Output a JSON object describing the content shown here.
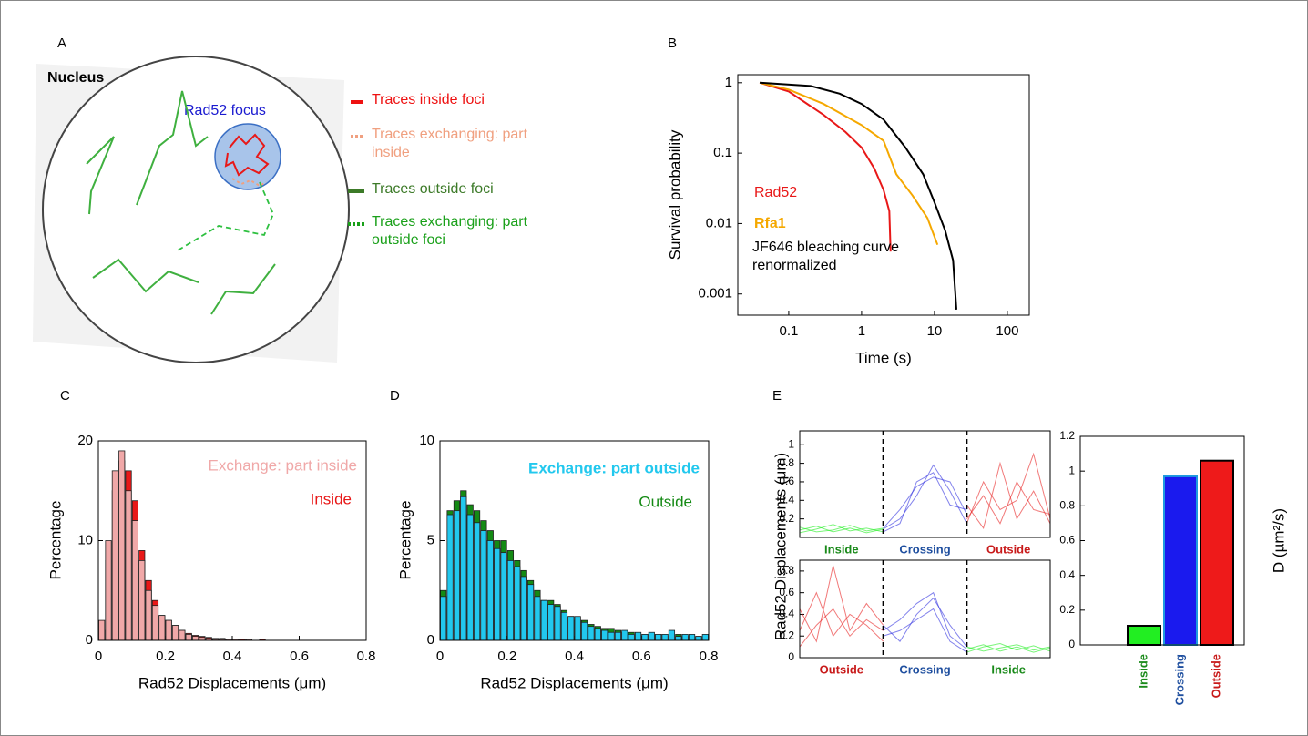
{
  "diagram": {
    "panel": "A",
    "nucleus_label": "Nucleus",
    "focus_label": "Rad52 focus",
    "legend": [
      {
        "label": "Traces inside foci",
        "color": "#ee1111"
      },
      {
        "label": "Traces exchanging: part inside",
        "color": "#f0a080"
      },
      {
        "label": "Traces outside foci",
        "color": "#3c7a28"
      },
      {
        "label": "Traces exchanging: part outside foci",
        "color": "#1aa01a"
      }
    ]
  },
  "chart_data": [
    {
      "type": "line",
      "panel": "B",
      "xlabel": "Time (s)",
      "ylabel": "Survival probability",
      "xscale": "log",
      "yscale": "log",
      "xlim": [
        0.02,
        200
      ],
      "ylim": [
        0.0005,
        1.3
      ],
      "xticks": [
        0.1,
        1,
        10,
        100
      ],
      "yticks": [
        1,
        0.1,
        0.01,
        0.001
      ],
      "series": [
        {
          "name": "Rad52",
          "color": "#e81818",
          "x": [
            0.04,
            0.1,
            0.3,
            0.6,
            1,
            1.5,
            2,
            2.4,
            2.5
          ],
          "values": [
            1,
            0.75,
            0.35,
            0.2,
            0.12,
            0.06,
            0.03,
            0.015,
            0.004
          ]
        },
        {
          "name": "Rfa1",
          "color": "#f5a800",
          "x": [
            0.04,
            0.1,
            0.3,
            1,
            2,
            3,
            5,
            8,
            11
          ],
          "values": [
            1,
            0.8,
            0.5,
            0.25,
            0.15,
            0.05,
            0.025,
            0.012,
            0.005
          ]
        },
        {
          "name": "JF646 bleaching curve renormalized",
          "color": "#000000",
          "x": [
            0.04,
            0.2,
            0.5,
            1,
            2,
            4,
            7,
            10,
            14,
            18,
            20
          ],
          "values": [
            1,
            0.9,
            0.7,
            0.5,
            0.3,
            0.12,
            0.05,
            0.02,
            0.008,
            0.003,
            0.0006
          ]
        }
      ]
    },
    {
      "type": "histogram",
      "panel": "C",
      "xlabel": "Rad52 Displacements (μm)",
      "ylabel": "Percentage",
      "xlim": [
        0,
        0.8
      ],
      "ylim": [
        0,
        20
      ],
      "xticks": [
        0,
        0.2,
        0.4,
        0.6,
        0.8
      ],
      "yticks": [
        0,
        10,
        20
      ],
      "bins": [
        0,
        0.02,
        0.04,
        0.06,
        0.08,
        0.1,
        0.12,
        0.14,
        0.16,
        0.18,
        0.2,
        0.22,
        0.24,
        0.26,
        0.28,
        0.3,
        0.32,
        0.34,
        0.36,
        0.38,
        0.4,
        0.42,
        0.44,
        0.46,
        0.48,
        0.5,
        0.52,
        0.54,
        0.56,
        0.58,
        0.6,
        0.62,
        0.64,
        0.66,
        0.68,
        0.7,
        0.72,
        0.74,
        0.76,
        0.78,
        0.8
      ],
      "series": [
        {
          "name": "Inside",
          "color": "#e81818",
          "values": [
            1,
            8,
            15,
            18,
            17,
            14,
            9,
            6,
            4,
            2.5,
            2,
            1.5,
            1,
            0.7,
            0.5,
            0.4,
            0.3,
            0.2,
            0.2,
            0.1,
            0.1,
            0.1,
            0.1,
            0,
            0.1,
            0,
            0,
            0,
            0,
            0,
            0,
            0,
            0,
            0,
            0,
            0,
            0,
            0,
            0,
            0
          ]
        },
        {
          "name": "Exchange: part inside",
          "color": "#f0a8a8",
          "values": [
            2,
            10,
            17,
            19,
            15,
            12,
            8,
            5,
            3.5,
            2.5,
            2,
            1.5,
            1,
            0.6,
            0.4,
            0.3,
            0.2,
            0.1,
            0.1,
            0.1,
            0.1,
            0,
            0.1,
            0,
            0,
            0,
            0,
            0,
            0,
            0,
            0,
            0,
            0,
            0,
            0,
            0,
            0,
            0,
            0,
            0
          ]
        }
      ]
    },
    {
      "type": "histogram",
      "panel": "D",
      "xlabel": "Rad52 Displacements (μm)",
      "ylabel": "Percentage",
      "xlim": [
        0,
        0.8
      ],
      "ylim": [
        0,
        10
      ],
      "xticks": [
        0,
        0.2,
        0.4,
        0.6,
        0.8
      ],
      "yticks": [
        0,
        5,
        10
      ],
      "bins": [
        0,
        0.02,
        0.04,
        0.06,
        0.08,
        0.1,
        0.12,
        0.14,
        0.16,
        0.18,
        0.2,
        0.22,
        0.24,
        0.26,
        0.28,
        0.3,
        0.32,
        0.34,
        0.36,
        0.38,
        0.4,
        0.42,
        0.44,
        0.46,
        0.48,
        0.5,
        0.52,
        0.54,
        0.56,
        0.58,
        0.6,
        0.62,
        0.64,
        0.66,
        0.68,
        0.7,
        0.72,
        0.74,
        0.76,
        0.78,
        0.8
      ],
      "series": [
        {
          "name": "Outside",
          "color": "#148a14",
          "values": [
            2.5,
            6.5,
            7,
            7.5,
            6.8,
            6.5,
            6,
            5.5,
            5,
            5,
            4.5,
            4,
            3.5,
            3,
            2.5,
            2,
            2,
            1.8,
            1.5,
            1.2,
            1,
            1,
            0.8,
            0.7,
            0.6,
            0.6,
            0.5,
            0.4,
            0.4,
            0.3,
            0.3,
            0.3,
            0.3,
            0.2,
            0.3,
            0.3,
            0.2,
            0.2,
            0.2,
            0.2
          ]
        },
        {
          "name": "Exchange: part outside",
          "color": "#22c8ee",
          "values": [
            2.2,
            6.3,
            6.5,
            7.2,
            6.3,
            5.9,
            5.5,
            5,
            4.6,
            4.4,
            4,
            3.7,
            3.2,
            2.8,
            2.2,
            2,
            1.8,
            1.7,
            1.4,
            1.2,
            1.2,
            0.9,
            0.7,
            0.6,
            0.5,
            0.4,
            0.4,
            0.5,
            0.3,
            0.4,
            0.3,
            0.4,
            0.3,
            0.3,
            0.5,
            0.2,
            0.3,
            0.3,
            0.2,
            0.3
          ]
        }
      ]
    },
    {
      "type": "traces",
      "panel": "E",
      "ylabel": "Rad52 Displacements (μm)",
      "xlim": [
        0,
        30
      ],
      "ylim": [
        0,
        1.15
      ],
      "yticks": [
        0.2,
        0.4,
        0.6,
        0.8,
        1
      ],
      "dividers": [
        10,
        20
      ],
      "groups": [
        {
          "label": "Inside",
          "color": "#1a8a1a"
        },
        {
          "label": "Crossing",
          "color": "#1f4f9f"
        },
        {
          "label": "Outside",
          "color": "#c81a1a"
        }
      ],
      "series": [
        {
          "color": "#22ee22",
          "x": [
            0,
            2,
            4,
            6,
            8,
            10
          ],
          "values": [
            0.08,
            0.12,
            0.06,
            0.1,
            0.05,
            0.09
          ]
        },
        {
          "color": "#22ee22",
          "x": [
            0,
            2,
            4,
            6,
            8,
            10
          ],
          "values": [
            0.05,
            0.09,
            0.14,
            0.07,
            0.1,
            0.06
          ]
        },
        {
          "color": "#22ee22",
          "x": [
            0,
            2,
            4,
            6,
            8,
            10
          ],
          "values": [
            0.11,
            0.06,
            0.08,
            0.13,
            0.07,
            0.1
          ]
        },
        {
          "color": "#3030e0",
          "x": [
            10,
            12,
            14,
            16,
            18,
            20
          ],
          "values": [
            0.09,
            0.2,
            0.45,
            0.78,
            0.5,
            0.15
          ]
        },
        {
          "color": "#3030e0",
          "x": [
            10,
            12,
            14,
            16,
            18,
            20
          ],
          "values": [
            0.06,
            0.15,
            0.6,
            0.7,
            0.35,
            0.3
          ]
        },
        {
          "color": "#3030e0",
          "x": [
            10,
            12,
            14,
            16,
            18,
            20
          ],
          "values": [
            0.1,
            0.3,
            0.55,
            0.65,
            0.6,
            0.25
          ]
        },
        {
          "color": "#e82020",
          "x": [
            20,
            22,
            24,
            26,
            28,
            30
          ],
          "values": [
            0.2,
            0.45,
            0.15,
            0.6,
            0.3,
            0.25
          ]
        },
        {
          "color": "#e82020",
          "x": [
            20,
            22,
            24,
            26,
            28,
            30
          ],
          "values": [
            0.35,
            0.1,
            0.8,
            0.2,
            0.5,
            0.15
          ]
        },
        {
          "color": "#e82020",
          "x": [
            20,
            22,
            24,
            26,
            28,
            30
          ],
          "values": [
            0.15,
            0.6,
            0.3,
            0.4,
            0.9,
            0.2
          ]
        }
      ]
    },
    {
      "type": "traces",
      "xlim": [
        0,
        30
      ],
      "ylim": [
        0,
        0.9
      ],
      "yticks": [
        0,
        0.2,
        0.4,
        0.6,
        0.8
      ],
      "dividers": [
        10,
        20
      ],
      "groups": [
        {
          "label": "Outside",
          "color": "#c81a1a"
        },
        {
          "label": "Crossing",
          "color": "#1f4f9f"
        },
        {
          "label": "Inside",
          "color": "#1a8a1a"
        }
      ],
      "series": [
        {
          "color": "#e82020",
          "x": [
            0,
            2,
            4,
            6,
            8,
            10
          ],
          "values": [
            0.25,
            0.6,
            0.2,
            0.4,
            0.3,
            0.15
          ]
        },
        {
          "color": "#e82020",
          "x": [
            0,
            2,
            4,
            6,
            8,
            10
          ],
          "values": [
            0.45,
            0.15,
            0.85,
            0.25,
            0.5,
            0.3
          ]
        },
        {
          "color": "#e82020",
          "x": [
            0,
            2,
            4,
            6,
            8,
            10
          ],
          "values": [
            0.1,
            0.3,
            0.45,
            0.2,
            0.35,
            0.25
          ]
        },
        {
          "color": "#3030e0",
          "x": [
            10,
            12,
            14,
            16,
            18,
            20
          ],
          "values": [
            0.25,
            0.35,
            0.5,
            0.6,
            0.2,
            0.08
          ]
        },
        {
          "color": "#3030e0",
          "x": [
            10,
            12,
            14,
            16,
            18,
            20
          ],
          "values": [
            0.3,
            0.15,
            0.4,
            0.55,
            0.3,
            0.1
          ]
        },
        {
          "color": "#3030e0",
          "x": [
            10,
            12,
            14,
            16,
            18,
            20
          ],
          "values": [
            0.2,
            0.25,
            0.35,
            0.45,
            0.15,
            0.05
          ]
        },
        {
          "color": "#22ee22",
          "x": [
            20,
            22,
            24,
            26,
            28,
            30
          ],
          "values": [
            0.08,
            0.12,
            0.06,
            0.1,
            0.05,
            0.09
          ]
        },
        {
          "color": "#22ee22",
          "x": [
            20,
            22,
            24,
            26,
            28,
            30
          ],
          "values": [
            0.05,
            0.1,
            0.13,
            0.07,
            0.11,
            0.06
          ]
        },
        {
          "color": "#22ee22",
          "x": [
            20,
            22,
            24,
            26,
            28,
            30
          ],
          "values": [
            0.1,
            0.06,
            0.09,
            0.12,
            0.07,
            0.1
          ]
        }
      ]
    },
    {
      "type": "bar",
      "ylabel": "D (µm²/s)",
      "categories": [
        "Inside",
        "Crossing",
        "Outside"
      ],
      "values": [
        0.11,
        0.97,
        1.06
      ],
      "colors": [
        "#22ee22",
        "#1a1aee",
        "#ee1a1a"
      ],
      "edgecolors": [
        "#000000",
        "#1e9be0",
        "#000000"
      ],
      "label_colors": [
        "#1a8a1a",
        "#1f4f9f",
        "#c81a1a"
      ],
      "ylim": [
        0,
        1.2
      ],
      "yticks": [
        0,
        0.2,
        0.4,
        0.6,
        0.8,
        1,
        1.2
      ]
    }
  ]
}
